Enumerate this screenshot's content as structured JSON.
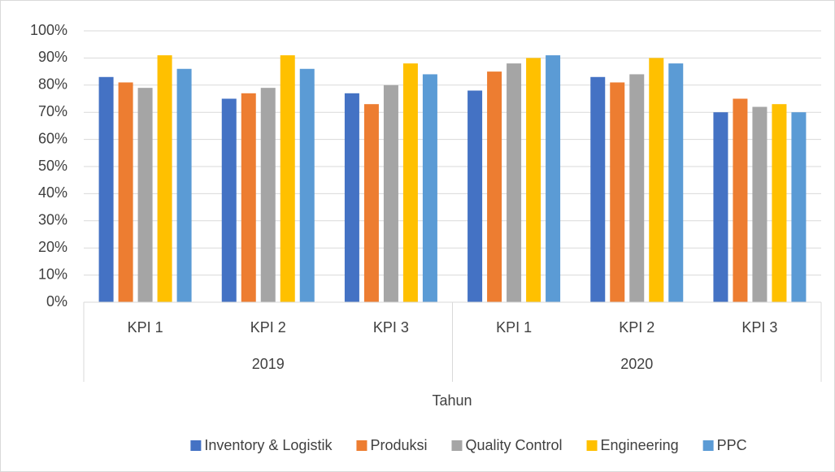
{
  "chart_data": {
    "type": "bar",
    "x_label": "Tahun",
    "groups": [
      {
        "name": "2019",
        "categories": [
          "KPI 1",
          "KPI 2",
          "KPI 3"
        ]
      },
      {
        "name": "2020",
        "categories": [
          "KPI 1",
          "KPI 2",
          "KPI 3"
        ]
      }
    ],
    "series": [
      {
        "name": "Inventory & Logistik",
        "color": "#4472c4",
        "values": [
          83,
          75,
          77,
          78,
          83,
          70
        ]
      },
      {
        "name": "Produksi",
        "color": "#ed7d31",
        "values": [
          81,
          77,
          73,
          85,
          81,
          75
        ]
      },
      {
        "name": "Quality Control",
        "color": "#a5a5a5",
        "values": [
          79,
          79,
          80,
          88,
          84,
          72
        ]
      },
      {
        "name": "Engineering",
        "color": "#ffc000",
        "values": [
          91,
          91,
          88,
          90,
          90,
          73
        ]
      },
      {
        "name": "PPC",
        "color": "#5b9bd5",
        "values": [
          86,
          86,
          84,
          91,
          88,
          70
        ]
      }
    ],
    "ylim": [
      0,
      100
    ],
    "yticks": [
      {
        "value": 0,
        "label": "0%"
      },
      {
        "value": 10,
        "label": "10%"
      },
      {
        "value": 20,
        "label": "20%"
      },
      {
        "value": 30,
        "label": "30%"
      },
      {
        "value": 40,
        "label": "40%"
      },
      {
        "value": 50,
        "label": "50%"
      },
      {
        "value": 60,
        "label": "60%"
      },
      {
        "value": 70,
        "label": "70%"
      },
      {
        "value": 80,
        "label": "80%"
      },
      {
        "value": 90,
        "label": "90%"
      },
      {
        "value": 100,
        "label": "100%"
      }
    ],
    "grid": true,
    "legend": "bottom"
  }
}
